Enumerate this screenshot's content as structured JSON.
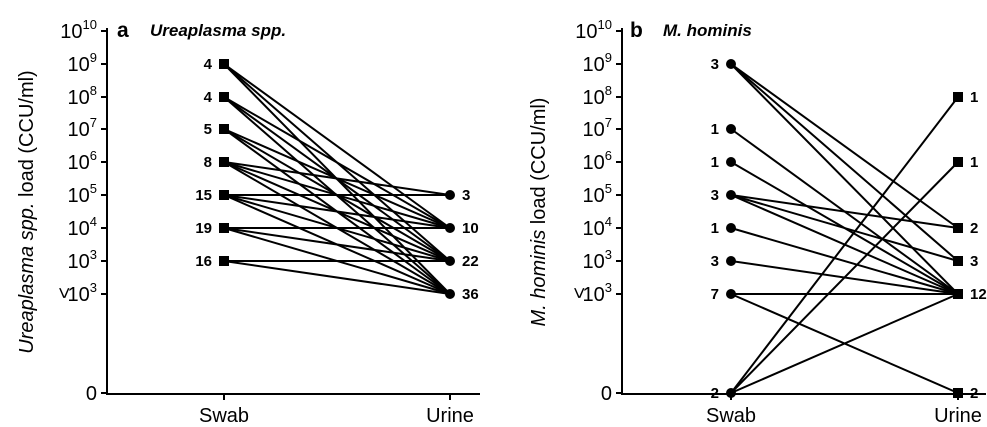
{
  "y_levels": [
    "0",
    "<10^3",
    "10^3",
    "10^4",
    "10^5",
    "10^6",
    "10^7",
    "10^8",
    "10^9",
    "10^10"
  ],
  "chart_data": [
    {
      "type": "line",
      "panel": "a",
      "title": "Ureaplasma spp.",
      "ylabel_italic": "Ureaplasma spp.",
      "ylabel_rest": " load (CCU/ml)",
      "xlabel": "",
      "categories": [
        "Swab",
        "Urine"
      ],
      "y_scale": "log10 with 0 and <10^3 categories",
      "y_ticks": [
        "0",
        "<10^3",
        "10^3",
        "10^4",
        "10^5",
        "10^6",
        "10^7",
        "10^8",
        "10^9",
        "10^10"
      ],
      "swab_marker": "square",
      "urine_marker": "circle",
      "swab_counts": [
        {
          "level": "10^9",
          "count": "4"
        },
        {
          "level": "10^8",
          "count": "4"
        },
        {
          "level": "10^7",
          "count": "5"
        },
        {
          "level": "10^6",
          "count": "8"
        },
        {
          "level": "10^5",
          "count": "15"
        },
        {
          "level": "10^4",
          "count": "19"
        },
        {
          "level": "10^3",
          "count": "16"
        }
      ],
      "urine_counts": [
        {
          "level": "10^5",
          "count": "3"
        },
        {
          "level": "10^4",
          "count": "10"
        },
        {
          "level": "10^3",
          "count": "22"
        },
        {
          "level": "<10^3",
          "count": "36"
        }
      ],
      "links": [
        [
          "10^9",
          "10^4"
        ],
        [
          "10^9",
          "10^3"
        ],
        [
          "10^9",
          "<10^3"
        ],
        [
          "10^8",
          "10^4"
        ],
        [
          "10^8",
          "10^3"
        ],
        [
          "10^8",
          "<10^3"
        ],
        [
          "10^7",
          "10^4"
        ],
        [
          "10^7",
          "10^3"
        ],
        [
          "10^7",
          "<10^3"
        ],
        [
          "10^6",
          "10^5"
        ],
        [
          "10^6",
          "10^4"
        ],
        [
          "10^6",
          "10^3"
        ],
        [
          "10^6",
          "<10^3"
        ],
        [
          "10^5",
          "10^5"
        ],
        [
          "10^5",
          "10^4"
        ],
        [
          "10^5",
          "10^3"
        ],
        [
          "10^5",
          "<10^3"
        ],
        [
          "10^4",
          "10^4"
        ],
        [
          "10^4",
          "10^3"
        ],
        [
          "10^4",
          "<10^3"
        ],
        [
          "10^3",
          "10^3"
        ],
        [
          "10^3",
          "<10^3"
        ]
      ]
    },
    {
      "type": "line",
      "panel": "b",
      "title": "M. hominis",
      "ylabel_italic": "M. hominis",
      "ylabel_rest": "  load (CCU/ml)",
      "xlabel": "",
      "categories": [
        "Swab",
        "Urine"
      ],
      "y_scale": "log10 with 0 and <10^3 categories",
      "y_ticks": [
        "0",
        "<10^3",
        "10^3",
        "10^4",
        "10^5",
        "10^6",
        "10^7",
        "10^8",
        "10^9",
        "10^10"
      ],
      "swab_marker": "circle",
      "urine_marker": "square",
      "swab_counts": [
        {
          "level": "10^9",
          "count": "3"
        },
        {
          "level": "10^7",
          "count": "1"
        },
        {
          "level": "10^6",
          "count": "1"
        },
        {
          "level": "10^5",
          "count": "3"
        },
        {
          "level": "10^4",
          "count": "1"
        },
        {
          "level": "10^3",
          "count": "3"
        },
        {
          "level": "<10^3",
          "count": "7"
        },
        {
          "level": "0",
          "count": "2"
        }
      ],
      "urine_counts": [
        {
          "level": "10^8",
          "count": "1"
        },
        {
          "level": "10^6",
          "count": "1"
        },
        {
          "level": "10^4",
          "count": "2"
        },
        {
          "level": "10^3",
          "count": "3"
        },
        {
          "level": "<10^3",
          "count": "12"
        },
        {
          "level": "0",
          "count": "2"
        }
      ],
      "links": [
        [
          "10^9",
          "10^4"
        ],
        [
          "10^9",
          "10^3"
        ],
        [
          "10^9",
          "<10^3"
        ],
        [
          "10^7",
          "<10^3"
        ],
        [
          "10^6",
          "<10^3"
        ],
        [
          "10^5",
          "10^4"
        ],
        [
          "10^5",
          "10^3"
        ],
        [
          "10^5",
          "<10^3"
        ],
        [
          "10^4",
          "<10^3"
        ],
        [
          "10^3",
          "<10^3"
        ],
        [
          "<10^3",
          "<10^3"
        ],
        [
          "<10^3",
          "0"
        ],
        [
          "0",
          "10^8"
        ],
        [
          "0",
          "10^6"
        ],
        [
          "0",
          "<10^3"
        ]
      ]
    }
  ]
}
